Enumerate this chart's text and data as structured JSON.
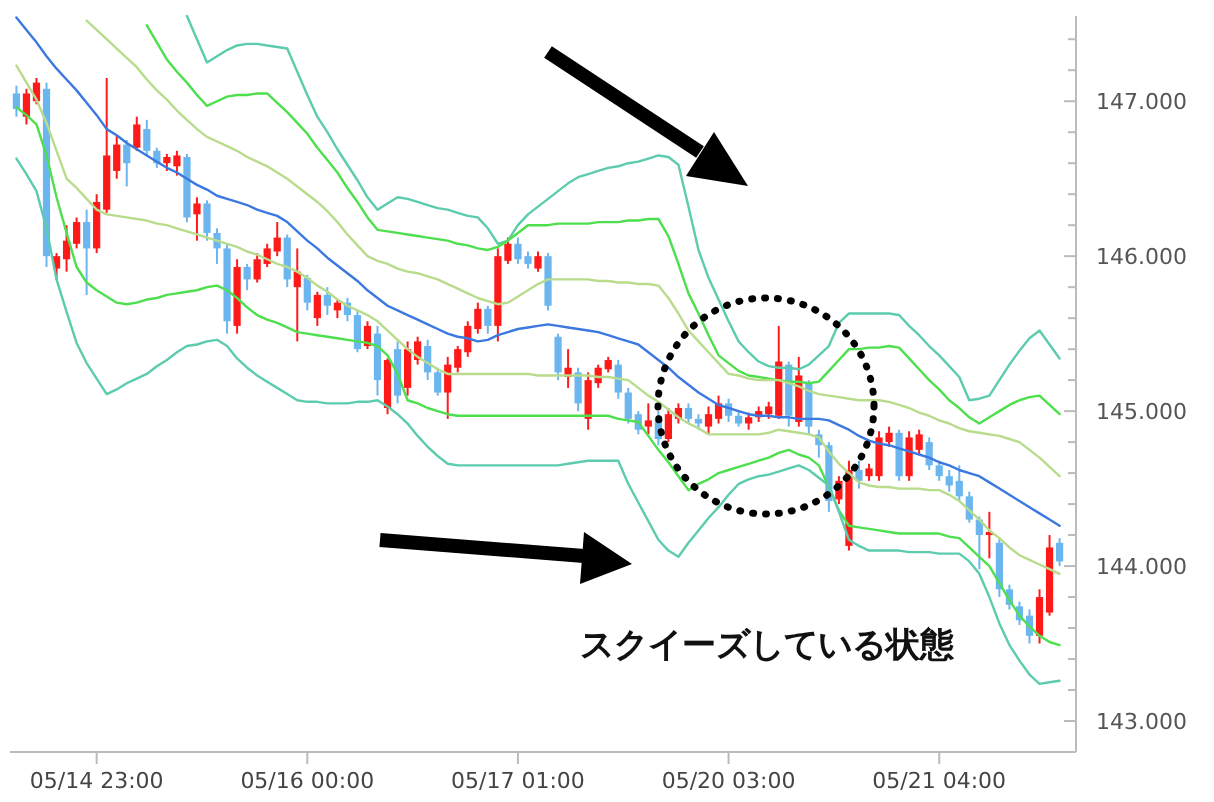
{
  "chart_data": {
    "type": "candlestick",
    "categories": [
      null,
      null,
      null,
      null,
      null,
      null,
      null,
      null,
      "05/14 23:00",
      null,
      null,
      null,
      null,
      null,
      null,
      null,
      null,
      null,
      null,
      null,
      null,
      null,
      null,
      null,
      null,
      null,
      null,
      null,
      null,
      "05/16 00:00",
      null,
      null,
      null,
      null,
      null,
      null,
      null,
      null,
      null,
      null,
      null,
      null,
      null,
      null,
      null,
      null,
      null,
      null,
      null,
      null,
      "05/17 01:00",
      null,
      null,
      null,
      null,
      null,
      null,
      null,
      null,
      null,
      null,
      null,
      null,
      null,
      null,
      null,
      null,
      null,
      null,
      null,
      null,
      "05/20 03:00",
      null,
      null,
      null,
      null,
      null,
      null,
      null,
      null,
      null,
      null,
      null,
      null,
      null,
      null,
      null,
      null,
      null,
      null,
      null,
      null,
      "05/21 04:00",
      null,
      null,
      null,
      null,
      null,
      null,
      null,
      null,
      null,
      null,
      null,
      null
    ],
    "ohlc": [
      [
        147.05,
        147.1,
        146.9,
        146.95
      ],
      [
        146.9,
        147.08,
        146.85,
        147.05
      ],
      [
        147.0,
        147.15,
        146.98,
        147.12
      ],
      [
        147.08,
        147.12,
        145.93,
        146.0
      ],
      [
        145.92,
        146.02,
        145.85,
        146.0
      ],
      [
        145.98,
        146.2,
        145.9,
        146.1
      ],
      [
        146.08,
        146.25,
        146.05,
        146.22
      ],
      [
        146.22,
        146.3,
        145.75,
        146.05
      ],
      [
        146.05,
        146.4,
        146.02,
        146.35
      ],
      [
        146.3,
        147.15,
        146.28,
        146.65
      ],
      [
        146.55,
        146.78,
        146.5,
        146.72
      ],
      [
        146.72,
        146.75,
        146.45,
        146.6
      ],
      [
        146.7,
        146.9,
        146.68,
        146.85
      ],
      [
        146.82,
        146.88,
        146.65,
        146.68
      ],
      [
        146.68,
        146.7,
        146.57,
        146.6
      ],
      [
        146.6,
        146.66,
        146.55,
        146.64
      ],
      [
        146.58,
        146.68,
        146.52,
        146.65
      ],
      [
        146.64,
        146.66,
        146.22,
        146.25
      ],
      [
        146.27,
        146.38,
        146.1,
        146.34
      ],
      [
        146.34,
        146.36,
        146.1,
        146.15
      ],
      [
        146.15,
        146.18,
        145.95,
        146.05
      ],
      [
        146.05,
        146.08,
        145.5,
        145.58
      ],
      [
        145.55,
        145.98,
        145.5,
        145.93
      ],
      [
        145.93,
        145.95,
        145.78,
        145.85
      ],
      [
        145.85,
        146.02,
        145.83,
        145.98
      ],
      [
        145.95,
        146.08,
        145.93,
        146.05
      ],
      [
        146.03,
        146.22,
        146.0,
        146.12
      ],
      [
        146.12,
        146.14,
        145.8,
        145.85
      ],
      [
        145.8,
        146.05,
        145.45,
        145.9
      ],
      [
        145.86,
        145.88,
        145.65,
        145.7
      ],
      [
        145.6,
        145.77,
        145.55,
        145.75
      ],
      [
        145.75,
        145.8,
        145.62,
        145.68
      ],
      [
        145.65,
        145.72,
        145.6,
        145.7
      ],
      [
        145.7,
        145.73,
        145.58,
        145.62
      ],
      [
        145.62,
        145.65,
        145.38,
        145.4
      ],
      [
        145.42,
        145.58,
        145.4,
        145.55
      ],
      [
        145.5,
        145.55,
        145.1,
        145.2
      ],
      [
        145.02,
        145.34,
        144.98,
        145.33
      ],
      [
        145.4,
        145.45,
        145.05,
        145.1
      ],
      [
        145.15,
        145.45,
        145.1,
        145.4
      ],
      [
        145.33,
        145.48,
        145.3,
        145.45
      ],
      [
        145.42,
        145.46,
        145.2,
        145.25
      ],
      [
        145.25,
        145.28,
        145.1,
        145.12
      ],
      [
        145.12,
        145.35,
        144.95,
        145.3
      ],
      [
        145.28,
        145.42,
        145.25,
        145.4
      ],
      [
        145.38,
        145.58,
        145.35,
        145.55
      ],
      [
        145.53,
        145.7,
        145.5,
        145.66
      ],
      [
        145.66,
        145.68,
        145.5,
        145.55
      ],
      [
        145.55,
        146.05,
        145.45,
        146.0
      ],
      [
        145.97,
        146.12,
        145.95,
        146.08
      ],
      [
        146.08,
        146.12,
        145.95,
        145.98
      ],
      [
        146.0,
        146.03,
        145.92,
        145.95
      ],
      [
        145.92,
        146.03,
        145.9,
        146.0
      ],
      [
        146.0,
        146.02,
        145.65,
        145.68
      ],
      [
        145.48,
        145.5,
        145.2,
        145.25
      ],
      [
        145.22,
        145.4,
        145.15,
        145.28
      ],
      [
        145.25,
        145.28,
        145.0,
        145.05
      ],
      [
        144.95,
        145.25,
        144.88,
        145.2
      ],
      [
        145.18,
        145.3,
        145.15,
        145.28
      ],
      [
        145.27,
        145.35,
        145.25,
        145.33
      ],
      [
        145.3,
        145.33,
        145.08,
        145.12
      ],
      [
        145.12,
        145.15,
        144.92,
        144.95
      ],
      [
        144.98,
        145.0,
        144.85,
        144.88
      ],
      [
        144.9,
        145.05,
        144.85,
        144.94
      ],
      [
        144.95,
        145.0,
        144.78,
        144.82
      ],
      [
        144.82,
        145.02,
        144.8,
        144.98
      ],
      [
        144.95,
        145.05,
        144.92,
        145.02
      ],
      [
        145.02,
        145.05,
        144.92,
        144.95
      ],
      [
        144.95,
        144.98,
        144.88,
        144.92
      ],
      [
        144.9,
        145.03,
        144.85,
        144.98
      ],
      [
        144.95,
        145.1,
        144.92,
        145.05
      ],
      [
        145.05,
        145.08,
        144.93,
        144.97
      ],
      [
        144.97,
        145.0,
        144.9,
        144.92
      ],
      [
        144.92,
        144.99,
        144.88,
        144.96
      ],
      [
        144.96,
        145.03,
        144.93,
        145.0
      ],
      [
        144.98,
        145.06,
        144.95,
        145.03
      ],
      [
        144.97,
        145.55,
        144.95,
        145.32
      ],
      [
        145.3,
        145.32,
        144.9,
        144.97
      ],
      [
        144.93,
        145.35,
        144.9,
        145.23
      ],
      [
        145.18,
        145.2,
        144.85,
        144.9
      ],
      [
        144.85,
        144.88,
        144.7,
        144.78
      ],
      [
        144.78,
        144.8,
        144.35,
        144.42
      ],
      [
        144.43,
        144.58,
        144.4,
        144.55
      ],
      [
        144.13,
        144.68,
        144.1,
        144.62
      ],
      [
        144.62,
        144.68,
        144.5,
        144.55
      ],
      [
        144.58,
        144.66,
        144.55,
        144.63
      ],
      [
        144.58,
        144.87,
        144.55,
        144.83
      ],
      [
        144.8,
        144.9,
        144.77,
        144.86
      ],
      [
        144.86,
        144.88,
        144.55,
        144.58
      ],
      [
        144.58,
        144.87,
        144.55,
        144.83
      ],
      [
        144.75,
        144.88,
        144.72,
        144.85
      ],
      [
        144.8,
        144.83,
        144.62,
        144.65
      ],
      [
        144.65,
        144.68,
        144.55,
        144.58
      ],
      [
        144.58,
        144.62,
        144.48,
        144.52
      ],
      [
        144.55,
        144.65,
        144.42,
        144.45
      ],
      [
        144.45,
        144.48,
        144.28,
        144.3
      ],
      [
        144.3,
        144.32,
        143.98,
        144.2
      ],
      [
        144.2,
        144.35,
        144.05,
        144.22
      ],
      [
        144.15,
        144.18,
        143.8,
        143.85
      ],
      [
        143.85,
        143.88,
        143.72,
        143.75
      ],
      [
        143.74,
        143.77,
        143.62,
        143.65
      ],
      [
        143.68,
        143.72,
        143.5,
        143.55
      ],
      [
        143.55,
        143.85,
        143.5,
        143.8
      ],
      [
        143.7,
        144.2,
        143.68,
        144.12
      ],
      [
        144.15,
        144.18,
        144.0,
        144.03
      ]
    ],
    "series": [
      {
        "type": "line",
        "color": "#5ccbae",
        "values": [
          null,
          null,
          null,
          null,
          null,
          null,
          null,
          null,
          null,
          null,
          null,
          null,
          null,
          null,
          null,
          null,
          null,
          147.55,
          147.4,
          147.25,
          147.29,
          147.33,
          147.36,
          147.37,
          147.37,
          147.36,
          147.35,
          147.34,
          147.19,
          147.04,
          146.9,
          146.8,
          146.69,
          146.59,
          146.49,
          146.38,
          146.3,
          146.34,
          146.38,
          146.37,
          146.35,
          146.33,
          146.31,
          146.3,
          146.28,
          146.26,
          146.25,
          146.18,
          146.08,
          146.1,
          146.2,
          146.27,
          146.32,
          146.37,
          146.42,
          146.47,
          146.51,
          146.53,
          146.55,
          146.57,
          146.58,
          146.6,
          146.61,
          146.63,
          146.65,
          146.64,
          146.59,
          146.32,
          146.04,
          145.86,
          145.72,
          145.58,
          145.45,
          145.38,
          145.32,
          145.29,
          145.28,
          145.28,
          145.27,
          145.3,
          145.36,
          145.42,
          145.57,
          145.63,
          145.63,
          145.63,
          145.63,
          145.63,
          145.62,
          145.55,
          145.49,
          145.42,
          145.36,
          145.29,
          145.22,
          145.07,
          145.08,
          145.1,
          145.2,
          145.3,
          145.39,
          145.47,
          145.52,
          145.43,
          145.34
        ]
      },
      {
        "type": "line",
        "color": "#4ddf4d",
        "values": [
          null,
          null,
          null,
          null,
          null,
          null,
          null,
          null,
          null,
          null,
          null,
          null,
          null,
          147.49,
          147.38,
          147.27,
          147.19,
          147.12,
          147.04,
          146.97,
          147.0,
          147.03,
          147.04,
          147.04,
          147.05,
          147.05,
          146.99,
          146.93,
          146.86,
          146.79,
          146.7,
          146.62,
          146.54,
          146.44,
          146.35,
          146.25,
          146.17,
          146.16,
          146.15,
          146.14,
          146.13,
          146.12,
          146.11,
          146.1,
          146.08,
          146.07,
          146.05,
          146.04,
          146.06,
          146.1,
          146.15,
          146.2,
          146.2,
          146.2,
          146.21,
          146.21,
          146.21,
          146.21,
          146.22,
          146.22,
          146.22,
          146.23,
          146.23,
          146.24,
          146.24,
          146.13,
          145.95,
          145.76,
          145.63,
          145.49,
          145.36,
          145.31,
          145.26,
          145.23,
          145.22,
          145.21,
          145.2,
          145.19,
          145.19,
          145.18,
          145.19,
          145.26,
          145.33,
          145.4,
          145.4,
          145.41,
          145.41,
          145.42,
          145.41,
          145.34,
          145.27,
          145.2,
          145.14,
          145.07,
          145.02,
          144.96,
          144.92,
          144.96,
          145.0,
          145.04,
          145.07,
          145.09,
          145.1,
          145.04,
          144.98
        ]
      },
      {
        "type": "line",
        "color": "#b8dc8c",
        "values": [
          null,
          null,
          null,
          null,
          null,
          null,
          null,
          147.52,
          147.46,
          147.4,
          147.34,
          147.28,
          147.22,
          147.14,
          147.07,
          147.01,
          146.94,
          146.88,
          146.82,
          146.77,
          146.74,
          146.71,
          146.68,
          146.64,
          146.61,
          146.58,
          146.54,
          146.5,
          146.45,
          146.4,
          146.35,
          146.29,
          146.22,
          146.14,
          146.07,
          146.0,
          145.97,
          145.95,
          145.92,
          145.9,
          145.89,
          145.87,
          145.85,
          145.82,
          145.79,
          145.76,
          145.73,
          145.71,
          145.69,
          145.7,
          145.74,
          145.78,
          145.82,
          145.85,
          145.85,
          145.85,
          145.85,
          145.85,
          145.84,
          145.84,
          145.83,
          145.83,
          145.82,
          145.82,
          145.81,
          145.73,
          145.63,
          145.52,
          145.45,
          145.38,
          145.31,
          145.24,
          145.23,
          145.21,
          145.2,
          145.2,
          145.2,
          145.18,
          145.16,
          145.13,
          145.11,
          145.1,
          145.09,
          145.08,
          145.07,
          145.07,
          145.07,
          145.06,
          145.04,
          145.02,
          144.99,
          144.97,
          144.94,
          144.92,
          144.89,
          144.87,
          144.86,
          144.85,
          144.84,
          144.82,
          144.8,
          144.75,
          144.7,
          144.64,
          144.58
        ]
      },
      {
        "type": "line",
        "color": "#3b78e0",
        "values": [
          147.54,
          147.46,
          147.38,
          147.29,
          147.21,
          147.14,
          147.07,
          146.99,
          146.91,
          146.82,
          146.78,
          146.73,
          146.69,
          146.65,
          146.61,
          146.57,
          146.54,
          146.5,
          146.46,
          146.43,
          146.39,
          146.37,
          146.35,
          146.33,
          146.3,
          146.28,
          146.26,
          146.22,
          146.16,
          146.1,
          146.05,
          145.99,
          145.94,
          145.89,
          145.84,
          145.78,
          145.73,
          145.68,
          145.65,
          145.62,
          145.59,
          145.56,
          145.53,
          145.5,
          145.48,
          145.47,
          145.45,
          145.46,
          145.49,
          145.51,
          145.53,
          145.54,
          145.55,
          145.56,
          145.55,
          145.54,
          145.53,
          145.52,
          145.51,
          145.49,
          145.47,
          145.45,
          145.43,
          145.38,
          145.33,
          145.28,
          145.22,
          145.17,
          145.12,
          145.08,
          145.04,
          145.02,
          145.0,
          144.98,
          144.97,
          144.97,
          144.96,
          144.96,
          144.95,
          144.95,
          144.95,
          144.94,
          144.91,
          144.88,
          144.84,
          144.81,
          144.79,
          144.78,
          144.76,
          144.74,
          144.72,
          144.7,
          144.67,
          144.65,
          144.62,
          144.6,
          144.58,
          144.54,
          144.5,
          144.46,
          144.42,
          144.38,
          144.34,
          144.3,
          144.26
        ]
      },
      {
        "type": "line",
        "color": "#b8dc8c",
        "values": [
          147.23,
          147.12,
          147.01,
          146.86,
          146.68,
          146.5,
          146.44,
          146.37,
          146.3,
          146.27,
          146.26,
          146.25,
          146.24,
          146.23,
          146.21,
          146.2,
          146.18,
          146.16,
          146.14,
          146.12,
          146.1,
          146.08,
          146.06,
          146.03,
          146.01,
          145.98,
          145.95,
          145.93,
          145.9,
          145.86,
          145.81,
          145.77,
          145.72,
          145.68,
          145.65,
          145.62,
          145.58,
          145.52,
          145.46,
          145.4,
          145.35,
          145.31,
          145.27,
          145.24,
          145.24,
          145.24,
          145.24,
          145.24,
          145.24,
          145.24,
          145.24,
          145.24,
          145.23,
          145.23,
          145.23,
          145.23,
          145.23,
          145.23,
          145.22,
          145.22,
          145.21,
          145.2,
          145.15,
          145.1,
          145.06,
          145.01,
          144.96,
          144.92,
          144.89,
          144.85,
          144.85,
          144.85,
          144.85,
          144.85,
          144.85,
          144.86,
          144.88,
          144.87,
          144.86,
          144.85,
          144.83,
          144.74,
          144.66,
          144.6,
          144.54,
          144.52,
          144.51,
          144.51,
          144.5,
          144.5,
          144.5,
          144.49,
          144.49,
          144.46,
          144.42,
          144.36,
          144.3,
          144.23,
          144.18,
          144.12,
          144.07,
          144.04,
          144.01,
          143.98,
          143.95
        ]
      },
      {
        "type": "line",
        "color": "#4ddf4d",
        "values": [
          146.96,
          146.91,
          146.85,
          146.65,
          146.38,
          146.15,
          145.93,
          145.83,
          145.78,
          145.74,
          145.7,
          145.69,
          145.7,
          145.72,
          145.73,
          145.75,
          145.76,
          145.77,
          145.78,
          145.8,
          145.81,
          145.78,
          145.73,
          145.67,
          145.62,
          145.59,
          145.57,
          145.54,
          145.51,
          145.5,
          145.49,
          145.48,
          145.47,
          145.46,
          145.45,
          145.44,
          145.42,
          145.36,
          145.24,
          145.07,
          145.05,
          145.02,
          145.0,
          144.98,
          144.97,
          144.97,
          144.97,
          144.97,
          144.97,
          144.97,
          144.97,
          144.97,
          144.97,
          144.97,
          144.97,
          144.97,
          144.97,
          144.97,
          144.97,
          144.97,
          144.95,
          144.94,
          144.93,
          144.84,
          144.75,
          144.67,
          144.58,
          144.49,
          144.53,
          144.56,
          144.6,
          144.62,
          144.64,
          144.66,
          144.68,
          144.7,
          144.73,
          144.75,
          144.72,
          144.7,
          144.65,
          144.51,
          144.36,
          144.26,
          144.25,
          144.24,
          144.23,
          144.22,
          144.21,
          144.21,
          144.21,
          144.21,
          144.21,
          144.19,
          144.18,
          144.12,
          144.06,
          144.0,
          143.89,
          143.78,
          143.68,
          143.61,
          143.55,
          143.51,
          143.49
        ]
      },
      {
        "type": "line",
        "color": "#5ccbae",
        "values": [
          146.63,
          146.53,
          146.42,
          146.18,
          145.85,
          145.64,
          145.44,
          145.31,
          145.21,
          145.11,
          145.14,
          145.18,
          145.21,
          145.24,
          145.29,
          145.33,
          145.38,
          145.42,
          145.43,
          145.45,
          145.46,
          145.42,
          145.34,
          145.28,
          145.23,
          145.19,
          145.15,
          145.11,
          145.07,
          145.06,
          145.06,
          145.05,
          145.05,
          145.05,
          145.06,
          145.06,
          145.07,
          145.03,
          144.98,
          144.92,
          144.84,
          144.77,
          144.71,
          144.66,
          144.65,
          144.65,
          144.65,
          144.65,
          144.65,
          144.65,
          144.65,
          144.65,
          144.65,
          144.65,
          144.65,
          144.66,
          144.67,
          144.68,
          144.68,
          144.68,
          144.68,
          144.53,
          144.41,
          144.29,
          144.17,
          144.1,
          144.06,
          144.15,
          144.23,
          144.31,
          144.38,
          144.46,
          144.53,
          144.56,
          144.58,
          144.59,
          144.61,
          144.63,
          144.65,
          144.62,
          144.57,
          144.52,
          144.35,
          144.17,
          144.13,
          144.1,
          144.1,
          144.1,
          144.1,
          144.09,
          144.09,
          144.09,
          144.08,
          144.08,
          144.08,
          144.03,
          143.95,
          143.8,
          143.63,
          143.49,
          143.39,
          143.3,
          143.24,
          143.25,
          143.26
        ]
      }
    ],
    "ylim": [
      142.8,
      147.55
    ],
    "yticks": [
      {
        "value": 143,
        "label": "143.000"
      },
      {
        "value": 143.2,
        "label": null
      },
      {
        "value": 143.4,
        "label": null
      },
      {
        "value": 143.6,
        "label": null
      },
      {
        "value": 143.8,
        "label": null
      },
      {
        "value": 144,
        "label": "144.000"
      },
      {
        "value": 144.2,
        "label": null
      },
      {
        "value": 144.4,
        "label": null
      },
      {
        "value": 144.6,
        "label": null
      },
      {
        "value": 144.8,
        "label": null
      },
      {
        "value": 145,
        "label": "145.000"
      },
      {
        "value": 145.2,
        "label": null
      },
      {
        "value": 145.4,
        "label": null
      },
      {
        "value": 145.6,
        "label": null
      },
      {
        "value": 145.8,
        "label": null
      },
      {
        "value": 146,
        "label": "146.000"
      },
      {
        "value": 146.2,
        "label": null
      },
      {
        "value": 146.4,
        "label": null
      },
      {
        "value": 146.6,
        "label": null
      },
      {
        "value": 146.8,
        "label": null
      },
      {
        "value": 147,
        "label": "147.000"
      },
      {
        "value": 147.2,
        "label": null
      },
      {
        "value": 147.4,
        "label": null
      }
    ],
    "annotations": [
      "スクイーズしている状態"
    ]
  }
}
